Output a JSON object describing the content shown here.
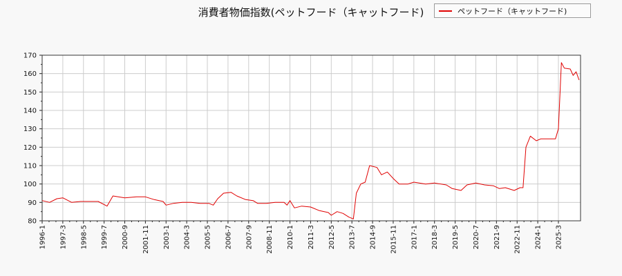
{
  "chart_data": {
    "type": "line",
    "title": "消費者物価指数(ペットフード（キャットフード)",
    "xlabel": "",
    "ylabel": "",
    "ylim": [
      80,
      170
    ],
    "yticks": [
      80,
      90,
      100,
      110,
      120,
      130,
      140,
      150,
      160,
      170
    ],
    "xticks": [
      "1996-1",
      "1997-3",
      "1998-5",
      "1999-7",
      "2000-9",
      "2001-11",
      "2003-1",
      "2004-3",
      "2005-5",
      "2006-7",
      "2007-9",
      "2008-11",
      "2010-1",
      "2011-3",
      "2012-5",
      "2013-7",
      "2014-9",
      "2015-11",
      "2017-1",
      "2018-3",
      "2019-5",
      "2020-7",
      "2021-9",
      "2022-11",
      "2024-1",
      "2025-3"
    ],
    "grid": true,
    "legend_position": "top-right",
    "series": [
      {
        "name": "ペットフード（キャットフード)",
        "color": "#e00000",
        "points": [
          [
            "1996-1",
            91
          ],
          [
            "1996-6",
            90
          ],
          [
            "1996-11",
            92
          ],
          [
            "1997-3",
            92.5
          ],
          [
            "1997-9",
            90
          ],
          [
            "1998-3",
            90.5
          ],
          [
            "1998-9",
            90.5
          ],
          [
            "1999-3",
            90.5
          ],
          [
            "1999-9",
            88
          ],
          [
            "2000-1",
            93.5
          ],
          [
            "2000-9",
            92.5
          ],
          [
            "2001-5",
            93
          ],
          [
            "2001-11",
            93
          ],
          [
            "2002-5",
            91.5
          ],
          [
            "2002-11",
            90.5
          ],
          [
            "2003-1",
            88.5
          ],
          [
            "2003-6",
            89.5
          ],
          [
            "2003-12",
            90
          ],
          [
            "2004-6",
            90
          ],
          [
            "2004-12",
            89.5
          ],
          [
            "2005-6",
            89.5
          ],
          [
            "2005-9",
            88.5
          ],
          [
            "2005-12",
            92
          ],
          [
            "2006-4",
            95
          ],
          [
            "2006-9",
            95.5
          ],
          [
            "2007-1",
            93.5
          ],
          [
            "2007-7",
            91.5
          ],
          [
            "2007-12",
            91
          ],
          [
            "2008-3",
            89.5
          ],
          [
            "2008-9",
            89.5
          ],
          [
            "2009-3",
            90
          ],
          [
            "2009-9",
            90
          ],
          [
            "2009-11",
            88.5
          ],
          [
            "2010-1",
            91
          ],
          [
            "2010-4",
            87
          ],
          [
            "2010-9",
            88
          ],
          [
            "2011-3",
            87.5
          ],
          [
            "2011-9",
            85.5
          ],
          [
            "2012-3",
            84.5
          ],
          [
            "2012-5",
            83
          ],
          [
            "2012-9",
            85
          ],
          [
            "2013-1",
            84
          ],
          [
            "2013-5",
            82
          ],
          [
            "2013-8",
            81
          ],
          [
            "2013-10",
            95
          ],
          [
            "2014-1",
            100
          ],
          [
            "2014-4",
            101
          ],
          [
            "2014-7",
            110
          ],
          [
            "2014-12",
            109
          ],
          [
            "2015-3",
            105
          ],
          [
            "2015-7",
            106.5
          ],
          [
            "2015-11",
            103
          ],
          [
            "2016-3",
            100
          ],
          [
            "2016-9",
            100
          ],
          [
            "2017-1",
            101
          ],
          [
            "2017-9",
            100
          ],
          [
            "2018-3",
            100.5
          ],
          [
            "2018-11",
            99.5
          ],
          [
            "2019-3",
            97.5
          ],
          [
            "2019-9",
            96.5
          ],
          [
            "2020-1",
            99.5
          ],
          [
            "2020-7",
            100.5
          ],
          [
            "2021-1",
            99.5
          ],
          [
            "2021-7",
            99
          ],
          [
            "2021-11",
            97.5
          ],
          [
            "2022-3",
            98
          ],
          [
            "2022-9",
            96.5
          ],
          [
            "2023-1",
            98
          ],
          [
            "2023-3",
            98
          ],
          [
            "2023-5",
            120
          ],
          [
            "2023-8",
            126
          ],
          [
            "2023-12",
            123.5
          ],
          [
            "2024-3",
            124.5
          ],
          [
            "2024-9",
            124.5
          ],
          [
            "2025-1",
            124.5
          ],
          [
            "2025-3",
            130
          ],
          [
            "2025-5",
            166
          ],
          [
            "2025-7",
            163
          ],
          [
            "2025-11",
            162.5
          ],
          [
            "2026-1",
            159
          ],
          [
            "2026-3",
            161
          ],
          [
            "2026-5",
            156.5
          ]
        ]
      }
    ]
  }
}
